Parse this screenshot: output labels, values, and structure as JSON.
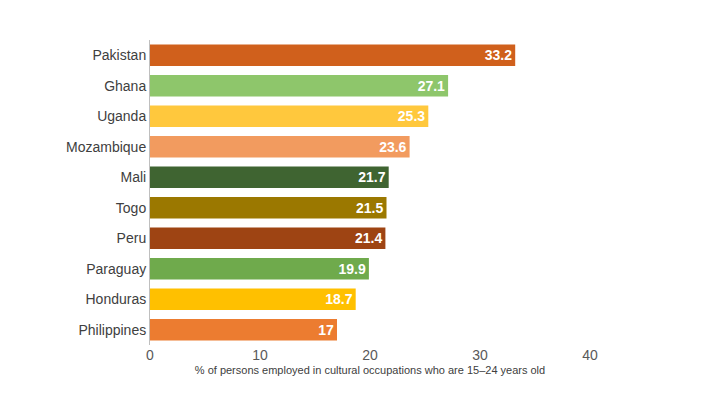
{
  "chart_data": {
    "type": "bar",
    "orientation": "horizontal",
    "xlabel": "% of persons employed in cultural occupations who are 15–24 years old",
    "categories": [
      "Pakistan",
      "Ghana",
      "Uganda",
      "Mozambique",
      "Mali",
      "Togo",
      "Peru",
      "Paraguay",
      "Honduras",
      "Philippines"
    ],
    "values": [
      33.2,
      27.1,
      25.3,
      23.6,
      21.7,
      21.5,
      21.4,
      19.9,
      18.7,
      17
    ],
    "colors": [
      "#D0601C",
      "#8EC66B",
      "#FFC83D",
      "#F29B5F",
      "#3F6431",
      "#9B7800",
      "#9E4413",
      "#6FAA4C",
      "#FFC000",
      "#EC7C30"
    ],
    "xlim": [
      0,
      40
    ],
    "xticks": [
      0,
      10,
      20,
      30,
      40
    ],
    "grid": false,
    "data_labels": true
  }
}
